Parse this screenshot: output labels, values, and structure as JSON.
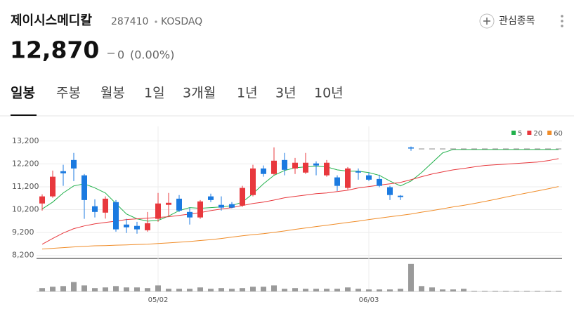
{
  "header": {
    "name": "제이시스메디칼",
    "code": "287410",
    "market": "KOSDAQ",
    "watch": "관심종목"
  },
  "price": {
    "value": "12,870",
    "change": "0",
    "change_pct": "(0.00%)"
  },
  "tabs": [
    "일봉",
    "주봉",
    "월봉",
    "1일",
    "3개월",
    "1년",
    "3년",
    "10년"
  ],
  "chart_data": {
    "type": "candlestick",
    "categories": [
      null,
      null,
      null,
      null,
      null,
      null,
      null,
      null,
      null,
      null,
      null,
      "05/02",
      null,
      null,
      null,
      null,
      null,
      null,
      null,
      null,
      null,
      null,
      null,
      null,
      null,
      null,
      null,
      null,
      null,
      null,
      null,
      "06/03",
      null,
      null,
      null,
      null,
      null,
      null,
      null,
      null,
      null,
      null,
      null,
      null,
      null,
      null,
      null,
      null,
      null,
      null
    ],
    "open": [
      10470,
      10780,
      11880,
      12370,
      11700,
      10350,
      10070,
      10530,
      9550,
      9490,
      9300,
      9800,
      10410,
      10680,
      10100,
      9860,
      10780,
      10410,
      10440,
      10380,
      10840,
      12000,
      11760,
      12370,
      12000,
      11820,
      12220,
      11700,
      11610,
      11150,
      11880,
      11700,
      11540,
      11180,
      10810,
      12920,
      12870,
      12870,
      12870,
      12870,
      12870,
      12870,
      12870,
      12870,
      12870,
      12870,
      12870,
      12870,
      12870,
      12870
    ],
    "high": [
      10870,
      11910,
      12160,
      12680,
      11760,
      10650,
      10780,
      10620,
      9800,
      9670,
      10100,
      10930,
      10930,
      10840,
      10290,
      10620,
      10900,
      10780,
      10530,
      11240,
      12160,
      12130,
      12920,
      12680,
      12460,
      12680,
      12310,
      12370,
      11700,
      12060,
      12000,
      11820,
      11730,
      11240,
      10840,
      12960,
      12870,
      12870,
      12870,
      12870,
      12870,
      12870,
      12870,
      12870,
      12870,
      12870,
      12870,
      12870,
      12870,
      12870
    ],
    "low": [
      10160,
      10720,
      11240,
      11450,
      9800,
      9860,
      9810,
      9240,
      9180,
      9150,
      9240,
      9670,
      9920,
      10100,
      9550,
      9800,
      10530,
      10160,
      10260,
      10320,
      10780,
      11640,
      11700,
      11700,
      11760,
      11760,
      11700,
      11640,
      11020,
      11080,
      11510,
      11450,
      11180,
      10620,
      10620,
      12770,
      12870,
      12870,
      12870,
      12870,
      12870,
      12870,
      12870,
      12870,
      12870,
      12870,
      12870,
      12870,
      12870,
      12870
    ],
    "close": [
      10780,
      11640,
      11790,
      12000,
      10620,
      10100,
      10680,
      9340,
      9430,
      9340,
      9610,
      10470,
      10500,
      10160,
      9860,
      10560,
      10620,
      10290,
      10290,
      11150,
      12000,
      11760,
      12340,
      11940,
      12250,
      12250,
      12130,
      12250,
      11240,
      12000,
      11820,
      11510,
      11240,
      10840,
      10750,
      12870,
      12870,
      12870,
      12870,
      12870,
      12870,
      12870,
      12870,
      12870,
      12870,
      12870,
      12870,
      12870,
      12870,
      12870
    ],
    "up_color": "#e8383d",
    "down_color": "#1b7ae0",
    "series": [
      {
        "name": "5",
        "color": "#22b14c",
        "values": [
          10230,
          10530,
          10930,
          11240,
          11330,
          11150,
          10930,
          10470,
          10010,
          9800,
          9700,
          9730,
          9920,
          10160,
          10290,
          10260,
          10290,
          10320,
          10380,
          10530,
          10900,
          11330,
          11700,
          11910,
          12030,
          12070,
          12100,
          12070,
          11940,
          11880,
          11880,
          11820,
          11700,
          11450,
          11240,
          11450,
          11820,
          12250,
          12680,
          12830,
          12830,
          12830,
          12830,
          12830,
          12830,
          12830,
          12830,
          12830,
          12830,
          12830
        ]
      },
      {
        "name": "20",
        "color": "#e8383d",
        "values": [
          8690,
          8940,
          9180,
          9370,
          9490,
          9580,
          9640,
          9700,
          9770,
          9800,
          9830,
          9860,
          9890,
          9950,
          10010,
          10070,
          10160,
          10230,
          10290,
          10380,
          10470,
          10530,
          10620,
          10720,
          10780,
          10840,
          10900,
          10930,
          10990,
          11050,
          11150,
          11210,
          11270,
          11330,
          11390,
          11510,
          11640,
          11760,
          11850,
          11940,
          12000,
          12070,
          12130,
          12160,
          12190,
          12220,
          12250,
          12280,
          12340,
          12430
        ]
      },
      {
        "name": "60",
        "color": "#f08c28",
        "values": [
          8480,
          8510,
          8540,
          8570,
          8600,
          8620,
          8630,
          8650,
          8660,
          8680,
          8690,
          8720,
          8750,
          8780,
          8810,
          8850,
          8890,
          8940,
          9000,
          9060,
          9110,
          9150,
          9210,
          9270,
          9340,
          9400,
          9460,
          9520,
          9580,
          9640,
          9700,
          9770,
          9830,
          9890,
          9950,
          10010,
          10090,
          10160,
          10240,
          10320,
          10390,
          10470,
          10560,
          10650,
          10750,
          10840,
          10930,
          11020,
          11110,
          11210
        ]
      }
    ],
    "ylim": [
      8100,
      13500
    ],
    "yticks": [
      {
        "value": 13200,
        "label": "13,200"
      },
      {
        "value": 12200,
        "label": "12,200"
      },
      {
        "value": 11200,
        "label": "11,200"
      },
      {
        "value": 10200,
        "label": "10,200"
      },
      {
        "value": 9200,
        "label": "9,200"
      },
      {
        "value": 8200,
        "label": "8,200"
      }
    ],
    "grid": true,
    "volume": {
      "color": "#9a9a9a",
      "ylim": [
        0,
        45
      ],
      "values": [
        5,
        7,
        8,
        14,
        9,
        5,
        6,
        8,
        6,
        6,
        5,
        9,
        4,
        4,
        4,
        6,
        4,
        5,
        4,
        5,
        7,
        7,
        9,
        4,
        5,
        4,
        4,
        4,
        4,
        6,
        4,
        3,
        3,
        3,
        4,
        41,
        8,
        6,
        3,
        3,
        4,
        1,
        1,
        1,
        1,
        1,
        1,
        1,
        1,
        1
      ]
    }
  }
}
